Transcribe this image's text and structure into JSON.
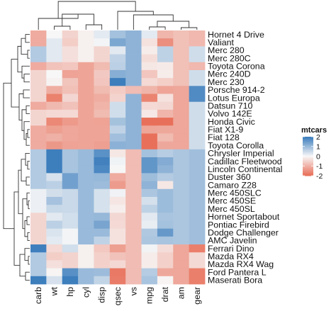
{
  "chart_data": {
    "type": "heatmap",
    "title": "",
    "xlabel": "",
    "ylabel": "",
    "columns": [
      "carb",
      "wt",
      "hp",
      "cyl",
      "disp",
      "qsec",
      "vs",
      "mpg",
      "drat",
      "am",
      "gear"
    ],
    "rows": [
      "Hornet 4 Drive",
      "Valiant",
      "Merc 280",
      "Merc 280C",
      "Toyota Corona",
      "Merc 240D",
      "Merc 230",
      "Porsche 914-2",
      "Lotus Europa",
      "Datsun 710",
      "Volvo 142E",
      "Honda Civic",
      "Fiat X1-9",
      "Fiat 128",
      "Toyota Corolla",
      "Chrysler Imperial",
      "Cadillac Fleetwood",
      "Lincoln Continental",
      "Duster 360",
      "Camaro Z28",
      "Merc 450SLC",
      "Merc 450SE",
      "Merc 450SL",
      "Hornet Sportabout",
      "Pontiac Firebird",
      "Dodge Challenger",
      "AMC Javelin",
      "Ferrari Dino",
      "Mazda RX4",
      "Mazda RX4 Wag",
      "Ford Pantera L",
      "Maserati Bora"
    ],
    "values": [
      [
        -1.12,
        -0.0,
        -0.54,
        -0.11,
        0.22,
        0.89,
        1.12,
        0.22,
        -0.97,
        -0.81,
        -0.93
      ],
      [
        -1.12,
        0.23,
        -0.61,
        -0.11,
        0.05,
        1.33,
        1.12,
        -0.33,
        -1.56,
        -0.81,
        -0.93
      ],
      [
        0.74,
        0.23,
        -0.35,
        -0.11,
        -0.51,
        0.23,
        1.12,
        -0.15,
        0.61,
        -0.81,
        0.43
      ],
      [
        0.74,
        0.23,
        -0.35,
        -0.11,
        -0.51,
        0.59,
        1.12,
        -0.38,
        0.61,
        -0.81,
        0.43
      ],
      [
        -1.12,
        -0.77,
        -0.71,
        -1.22,
        -0.89,
        0.65,
        1.12,
        -0.24,
        -0.19,
        -0.81,
        -0.93
      ],
      [
        -0.5,
        -0.0,
        -1.24,
        -1.22,
        -0.68,
        1.2,
        1.12,
        -0.72,
        -0.17,
        -0.81,
        0.43
      ],
      [
        -0.5,
        -0.07,
        -0.75,
        -1.22,
        -0.73,
        2.83,
        1.12,
        -0.45,
        -0.6,
        -0.81,
        0.43
      ],
      [
        -0.5,
        -1.1,
        -0.82,
        -1.22,
        -0.89,
        -0.64,
        -0.87,
        -0.98,
        -1.21,
        -1.19,
        1.78
      ],
      [
        -0.5,
        -1.74,
        -0.49,
        -1.22,
        -1.09,
        -0.53,
        1.12,
        -1.71,
        -0.32,
        -1.19,
        1.78
      ],
      [
        -1.12,
        -0.92,
        -0.78,
        -1.22,
        -0.99,
        0.43,
        1.12,
        -0.45,
        -0.47,
        -1.19,
        0.43
      ],
      [
        -0.5,
        -0.45,
        -0.45,
        -1.22,
        -0.89,
        0.42,
        1.12,
        -0.22,
        -0.97,
        -1.19,
        0.43
      ],
      [
        -0.5,
        -1.64,
        -1.38,
        -1.22,
        -1.25,
        0.88,
        1.12,
        -2.04,
        -2.49,
        -1.19,
        0.43
      ],
      [
        -1.12,
        -1.31,
        -1.19,
        -1.22,
        -1.22,
        0.59,
        1.12,
        -1.2,
        -1.17,
        -1.19,
        0.43
      ],
      [
        -1.12,
        -1.04,
        -1.19,
        -1.22,
        -1.23,
        0.91,
        1.12,
        -2.04,
        -0.88,
        -1.19,
        0.43
      ],
      [
        -1.12,
        -1.41,
        -1.24,
        -1.22,
        -1.29,
        1.15,
        1.12,
        -2.29,
        -1.17,
        -1.19,
        0.43
      ],
      [
        0.74,
        2.17,
        0.85,
        1.01,
        1.69,
        -0.24,
        -0.87,
        0.89,
        0.69,
        0.81,
        0.93
      ],
      [
        0.74,
        2.08,
        0.85,
        1.01,
        1.95,
        0.07,
        -0.87,
        1.61,
        1.25,
        0.81,
        0.93
      ],
      [
        0.74,
        2.26,
        0.85,
        1.01,
        1.84,
        -0.01,
        -0.87,
        1.61,
        1.12,
        0.81,
        0.93
      ],
      [
        0.74,
        0.36,
        1.43,
        1.01,
        1.04,
        -1.12,
        -0.87,
        0.96,
        0.72,
        0.81,
        0.93
      ],
      [
        0.74,
        0.64,
        1.43,
        1.01,
        0.97,
        -1.36,
        -0.87,
        1.13,
        -0.24,
        0.81,
        0.93
      ],
      [
        0.12,
        0.4,
        0.49,
        1.01,
        0.37,
        0.08,
        -0.87,
        0.81,
        0.98,
        0.81,
        0.93
      ],
      [
        0.12,
        0.87,
        0.49,
        1.01,
        0.37,
        -0.25,
        -0.87,
        0.38,
        0.98,
        0.81,
        0.93
      ],
      [
        0.12,
        0.52,
        0.49,
        1.01,
        0.37,
        -0.14,
        -0.87,
        0.61,
        0.98,
        0.81,
        0.93
      ],
      [
        -0.5,
        0.23,
        0.41,
        1.01,
        1.04,
        -0.47,
        -0.87,
        0.23,
        0.84,
        0.81,
        0.93
      ],
      [
        -0.5,
        0.64,
        0.41,
        1.01,
        1.37,
        -0.45,
        -0.87,
        0.15,
        0.89,
        0.81,
        0.93
      ],
      [
        -0.5,
        0.31,
        0.05,
        1.01,
        1.01,
        -0.31,
        -0.87,
        0.76,
        1.56,
        0.81,
        0.93
      ],
      [
        -0.5,
        0.22,
        0.05,
        1.01,
        0.59,
        -0.31,
        -0.87,
        0.81,
        0.84,
        0.81,
        0.93
      ],
      [
        1.98,
        -0.45,
        0.41,
        -0.11,
        -0.69,
        -1.31,
        -0.87,
        0.06,
        -0.38,
        -1.19,
        -1.78
      ],
      [
        0.74,
        -0.61,
        -0.54,
        -0.11,
        -0.57,
        -0.78,
        -0.87,
        -0.15,
        -0.57,
        -1.19,
        -0.43
      ],
      [
        0.74,
        -0.35,
        -0.54,
        -0.11,
        -0.57,
        -0.46,
        -0.87,
        -0.15,
        -0.57,
        -1.19,
        -0.43
      ],
      [
        0.74,
        -0.05,
        1.71,
        1.01,
        0.97,
        -1.87,
        -0.87,
        0.71,
        -1.17,
        -1.19,
        -1.78
      ],
      [
        3.21,
        0.36,
        2.75,
        1.01,
        0.57,
        -1.82,
        -0.87,
        0.84,
        -0.05,
        -1.19,
        -1.78
      ]
    ],
    "scale": {
      "min": -2,
      "max": 2,
      "low_color": "#e8705a",
      "mid_color": "#f7f7f7",
      "high_color": "#3d7ebd"
    },
    "legend": {
      "title": "mtcars",
      "ticks": [
        2,
        1,
        0,
        -1,
        -2
      ],
      "position": "right"
    }
  }
}
